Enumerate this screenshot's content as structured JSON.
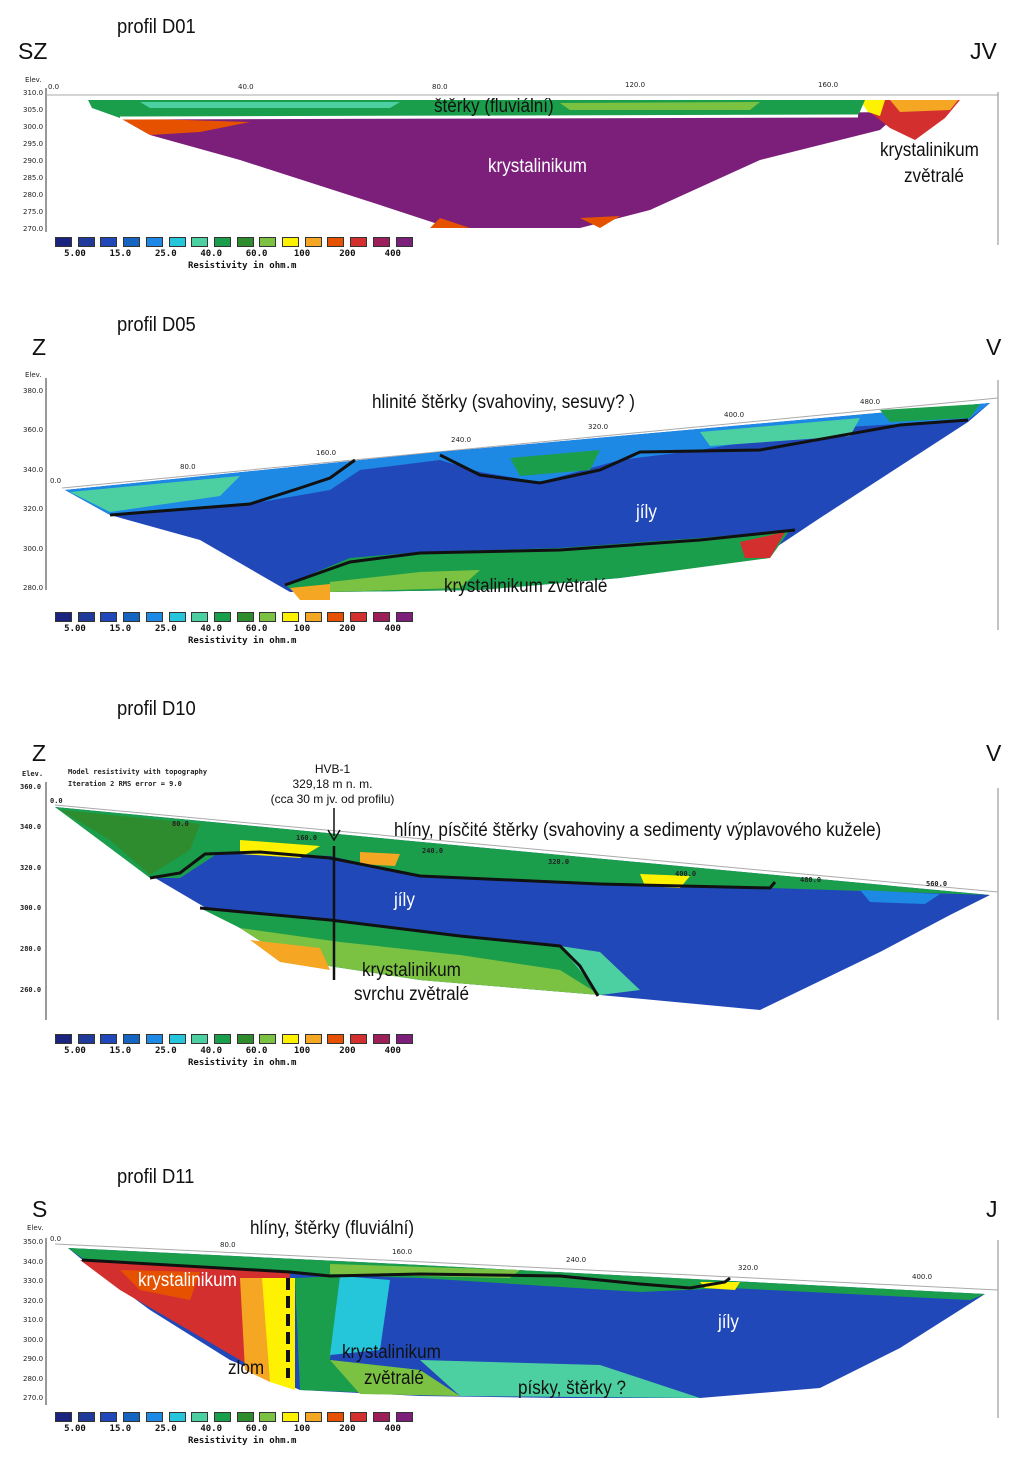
{
  "legend": {
    "labels": [
      "5.00",
      "15.0",
      "25.0",
      "40.0",
      "60.0",
      "100",
      "200",
      "400"
    ],
    "caption": "Resistivity in ohm.m",
    "colors": [
      "#1a237e",
      "#1f3a99",
      "#2148b8",
      "#1565c0",
      "#1e88e5",
      "#26c6da",
      "#4dd0a1",
      "#1b9e4b",
      "#2e8b2e",
      "#7cc242",
      "#fff200",
      "#f5a623",
      "#e65100",
      "#d32f2f",
      "#9c1f5a",
      "#7b1f7a"
    ]
  },
  "panels": [
    {
      "title": "profil D01",
      "left_dir": "SZ",
      "right_dir": "JV",
      "elev_label": "Elev.",
      "yticks": [
        "310.0",
        "305.0",
        "300.0",
        "295.0",
        "290.0",
        "285.0",
        "280.0",
        "275.0",
        "270.0"
      ],
      "xticks": [
        "0.0",
        "40.0",
        "80.0",
        "120.0",
        "160.0"
      ],
      "annotations": {
        "a1": "štěrky (fluviální)",
        "a2": "krystalinikum",
        "a3": "krystalinikum",
        "a4": "zvětralé"
      }
    },
    {
      "title": "profil D05",
      "left_dir": "Z",
      "right_dir": "V",
      "elev_label": "Elev.",
      "yticks": [
        "380.0",
        "360.0",
        "340.0",
        "320.0",
        "300.0",
        "280.0"
      ],
      "xticks": [
        "0.0",
        "80.0",
        "160.0",
        "240.0",
        "320.0",
        "400.0",
        "480.0"
      ],
      "annotations": {
        "a1": "hlinité štěrky (svahoviny, sesuvy? )",
        "a2": "jíly",
        "a3": "krystalinikum zvětralé"
      }
    },
    {
      "title": "profil D10",
      "left_dir": "Z",
      "right_dir": "V",
      "elev_label": "Elev.",
      "model_line1": "Model resistivity with topography",
      "model_line2": "Iteration 2 RMS error = 9.0",
      "yticks": [
        "360.0",
        "340.0",
        "320.0",
        "300.0",
        "280.0",
        "260.0"
      ],
      "xticks": [
        "0.0",
        "80.0",
        "160.0",
        "240.0",
        "320.0",
        "400.0",
        "480.0",
        "560.0"
      ],
      "well": {
        "name": "HVB-1",
        "elev": "329,18 m n. m.",
        "note": "(cca 30 m jv. od profilu)"
      },
      "annotations": {
        "a1": "hlíny, písčité štěrky (svahoviny a sedimenty výplavového kužele)",
        "a2": "jíly",
        "a3": "krystalinikum",
        "a4": "svrchu zvětralé"
      }
    },
    {
      "title": "profil D11",
      "left_dir": "S",
      "right_dir": "J",
      "elev_label": "Elev.",
      "yticks": [
        "350.0",
        "340.0",
        "330.0",
        "320.0",
        "310.0",
        "300.0",
        "290.0",
        "280.0",
        "270.0"
      ],
      "xticks": [
        "0.0",
        "80.0",
        "160.0",
        "240.0",
        "320.0",
        "400.0"
      ],
      "annotations": {
        "a1": "hlíny, štěrky (fluviální)",
        "a2": "krystalinikum",
        "a3": "jíly",
        "a4": "zlom",
        "a5": "krystalinikum",
        "a6": "zvětralé",
        "a7": "písky, štěrky ?"
      }
    }
  ]
}
